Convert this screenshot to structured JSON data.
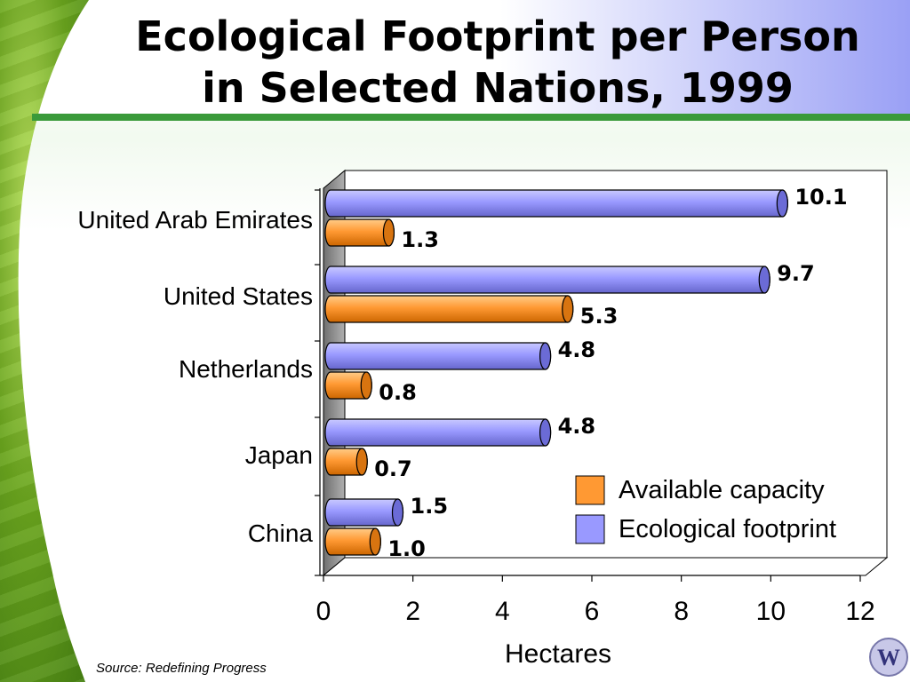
{
  "slide": {
    "title_line1": "Ecological Footprint per Person",
    "title_line2": "in Selected Nations, 1999",
    "source": "Source: Redefining Progress",
    "logo_text": "W"
  },
  "chart_data": {
    "type": "bar",
    "orientation": "horizontal",
    "categories": [
      "United Arab Emirates",
      "United States",
      "Netherlands",
      "Japan",
      "China"
    ],
    "series": [
      {
        "name": "Ecological footprint",
        "values": [
          10.1,
          9.7,
          4.8,
          4.8,
          1.5
        ],
        "color": "#9999ff"
      },
      {
        "name": "Available capacity",
        "values": [
          1.3,
          5.3,
          0.8,
          0.7,
          1.0
        ],
        "color": "#ff9933"
      }
    ],
    "data_labels": [
      [
        "10.1",
        "9.7",
        "4.8",
        "4.8",
        "1.5"
      ],
      [
        "1.3",
        "5.3",
        "0.8",
        "0.7",
        "1.0"
      ]
    ],
    "xlabel": "Hectares",
    "xlim": [
      0,
      12
    ],
    "xticks": [
      "0",
      "2",
      "4",
      "6",
      "8",
      "10",
      "12"
    ],
    "legend": {
      "placement": "bottom-right",
      "entries": [
        "Available capacity",
        "Ecological footprint"
      ]
    },
    "grid": false
  }
}
